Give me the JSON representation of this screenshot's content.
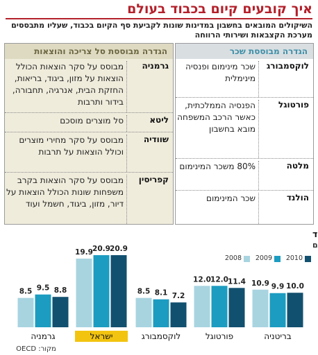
{
  "header": {
    "title": "איך קובעים קיום בכבוד בעולם",
    "subtitle": "השיקולים המובאים בחשבון במדינות שונות לקביעת סף הקיום בכבוד, שעליו מתבססים מערכת הקצבאות ושירותי הרווחה"
  },
  "table": {
    "wage_based": {
      "heading": "הגדרה מבוססת שכר",
      "rows": [
        [
          "לוקסמבורג",
          "שכר מינימום ופנסיה מינימלית"
        ],
        [
          "פורטוגל",
          "הפנסיה הממלכתית, כאשר הרכב המשפחה מובא בחשבון"
        ],
        [
          "מלטה",
          "80% משכר המינימום"
        ],
        [
          "הולנד",
          "שכר המינימום"
        ]
      ]
    },
    "basket_based": {
      "heading": "הגדרה מבוססת סל צריכה והוצאות",
      "rows": [
        [
          "גרמניה",
          "מבוסס על סקר הוצאות הכולל הוצאות על מזון, ביגוד, בריאות, החזקת הבית, אנרגיה, תחבורה, בידור ותרבות"
        ],
        [
          "ליטא",
          "סל מוצרים מוסכם"
        ],
        [
          "שוודיה",
          "מבוסס על סקר מחירי מוצרים וכולל הוצאות על תרבות"
        ],
        [
          "קפריסין",
          "מבוסס על סקר הוצאות בקרב משפחות שונות הכולל הוצאות על דיור, מזון, ביגוד, חשמל ועוד"
        ]
      ]
    }
  },
  "chart_data": {
    "type": "bar",
    "title": "על אף שיעורי העוני הגבוהים, בישראל אין כל הגדרה לקיום בכבוד",
    "subtitle": "שיעור העוני בכמה מדינות, באחוזים",
    "categories": [
      "בריטניה",
      "פורטוגל",
      "לוקסמבורג",
      "ישראל",
      "גרמניה"
    ],
    "highlight": "ישראל",
    "series": [
      {
        "name": "2008",
        "color": "#a8d4e0",
        "values": [
          10.9,
          12.0,
          8.5,
          19.9,
          8.5
        ],
        "value_labels": [
          "10.9",
          "12.0",
          "8.5",
          "19.9",
          "8.5"
        ]
      },
      {
        "name": "2009",
        "color": "#1c9cc0",
        "values": [
          9.9,
          12.0,
          8.1,
          20.9,
          9.5
        ],
        "value_labels": [
          "9.9",
          "12.0",
          "8.1",
          "20.9",
          "9.5"
        ]
      },
      {
        "name": "2010",
        "color": "#12506f",
        "values": [
          10.0,
          11.4,
          7.2,
          20.9,
          8.8
        ],
        "value_labels": [
          "10.0",
          "11.4",
          "7.2",
          "20.9",
          "8.8"
        ]
      }
    ],
    "source": "מקור: OECD"
  }
}
